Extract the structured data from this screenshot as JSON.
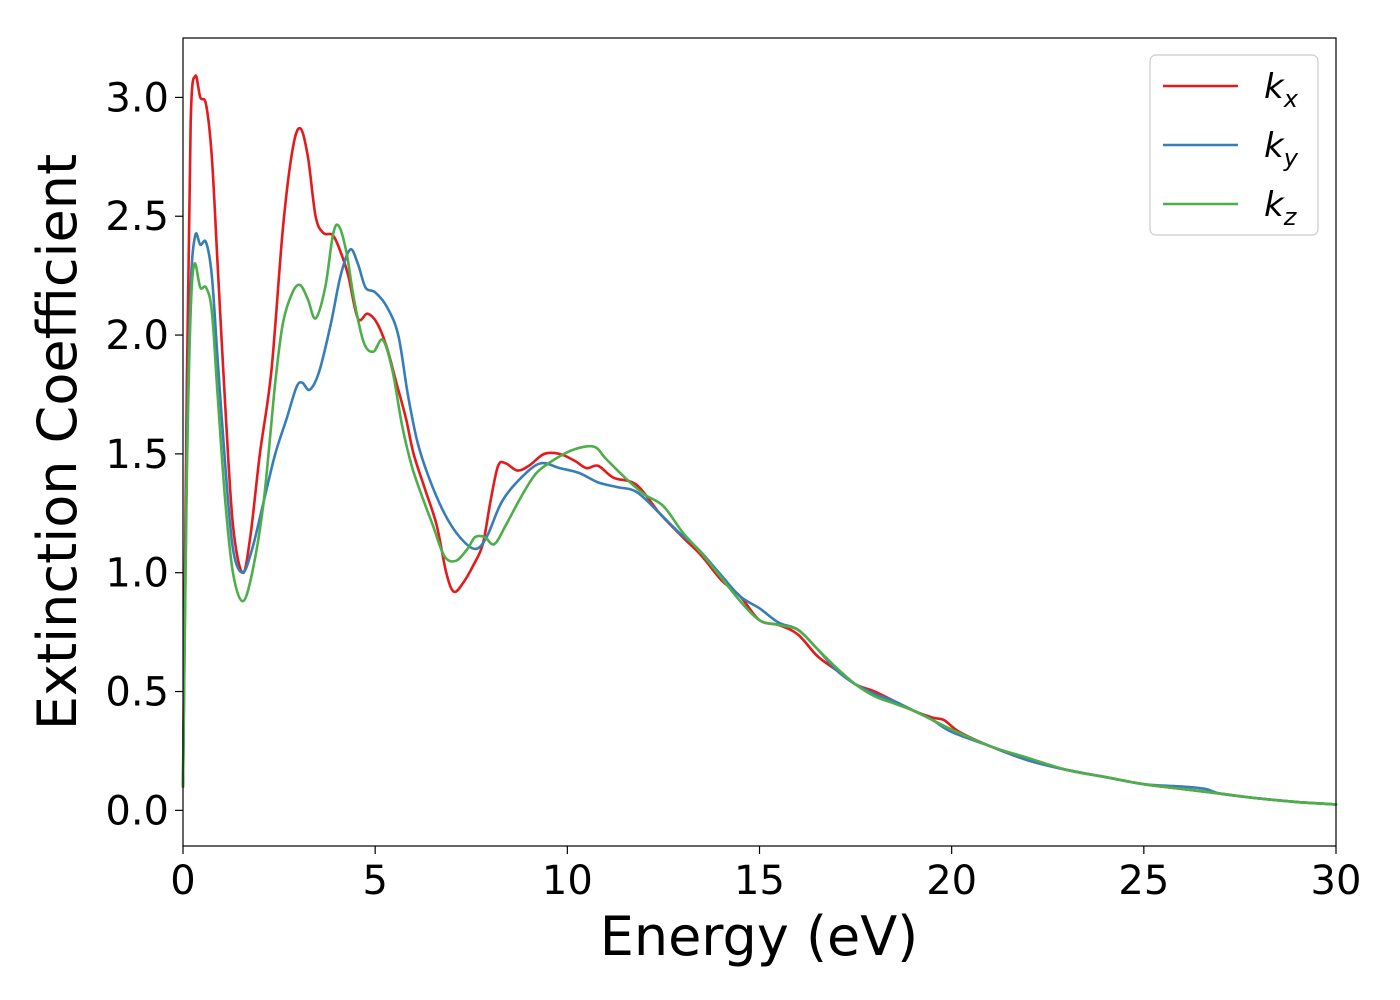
{
  "chart_data": {
    "type": "line",
    "title": "",
    "xlabel": "Energy (eV)",
    "ylabel": "Extinction Coefficient",
    "xlim": [
      0,
      30
    ],
    "ylim": [
      -0.15,
      3.25
    ],
    "x_ticks": [
      0,
      5,
      10,
      15,
      20,
      25,
      30
    ],
    "x_tick_labels": [
      "0",
      "5",
      "10",
      "15",
      "20",
      "25",
      "30"
    ],
    "y_ticks": [
      0.0,
      0.5,
      1.0,
      1.5,
      2.0,
      2.5,
      3.0
    ],
    "y_tick_labels": [
      "0.0",
      "0.5",
      "1.0",
      "1.5",
      "2.0",
      "2.5",
      "3.0"
    ],
    "grid": false,
    "legend_position": "top-right",
    "series": [
      {
        "name": "k_x",
        "legend_base": "k",
        "legend_sub": "x",
        "color": "#e41a1c",
        "points": [
          [
            0,
            0.1
          ],
          [
            0.1,
            1.8
          ],
          [
            0.2,
            2.9
          ],
          [
            0.32,
            3.09
          ],
          [
            0.45,
            3.0
          ],
          [
            0.6,
            2.97
          ],
          [
            0.75,
            2.75
          ],
          [
            0.9,
            2.3
          ],
          [
            1.1,
            1.7
          ],
          [
            1.3,
            1.2
          ],
          [
            1.55,
            1.0
          ],
          [
            1.75,
            1.15
          ],
          [
            2.0,
            1.5
          ],
          [
            2.3,
            1.85
          ],
          [
            2.6,
            2.45
          ],
          [
            2.85,
            2.78
          ],
          [
            3.05,
            2.87
          ],
          [
            3.25,
            2.75
          ],
          [
            3.45,
            2.5
          ],
          [
            3.65,
            2.43
          ],
          [
            3.9,
            2.42
          ],
          [
            4.1,
            2.35
          ],
          [
            4.3,
            2.25
          ],
          [
            4.55,
            2.07
          ],
          [
            4.8,
            2.09
          ],
          [
            5.05,
            2.05
          ],
          [
            5.3,
            1.95
          ],
          [
            5.55,
            1.8
          ],
          [
            5.8,
            1.65
          ],
          [
            6.0,
            1.5
          ],
          [
            6.3,
            1.35
          ],
          [
            6.6,
            1.2
          ],
          [
            6.85,
            1.0
          ],
          [
            7.05,
            0.92
          ],
          [
            7.3,
            0.96
          ],
          [
            7.55,
            1.03
          ],
          [
            7.8,
            1.12
          ],
          [
            8.0,
            1.3
          ],
          [
            8.2,
            1.45
          ],
          [
            8.4,
            1.46
          ],
          [
            8.7,
            1.43
          ],
          [
            9.0,
            1.45
          ],
          [
            9.4,
            1.5
          ],
          [
            9.8,
            1.5
          ],
          [
            10.2,
            1.47
          ],
          [
            10.5,
            1.44
          ],
          [
            10.8,
            1.45
          ],
          [
            11.2,
            1.4
          ],
          [
            11.8,
            1.37
          ],
          [
            12.4,
            1.25
          ],
          [
            13.0,
            1.15
          ],
          [
            13.5,
            1.07
          ],
          [
            14.0,
            0.97
          ],
          [
            14.5,
            0.9
          ],
          [
            15.0,
            0.8
          ],
          [
            15.5,
            0.78
          ],
          [
            16.0,
            0.74
          ],
          [
            16.5,
            0.65
          ],
          [
            17.0,
            0.59
          ],
          [
            17.5,
            0.53
          ],
          [
            18.0,
            0.5
          ],
          [
            18.5,
            0.46
          ],
          [
            19.0,
            0.42
          ],
          [
            19.5,
            0.39
          ],
          [
            19.8,
            0.38
          ],
          [
            20.2,
            0.33
          ],
          [
            21.0,
            0.27
          ],
          [
            22.0,
            0.21
          ],
          [
            23.0,
            0.17
          ],
          [
            24.0,
            0.14
          ],
          [
            25.0,
            0.11
          ],
          [
            26.0,
            0.09
          ],
          [
            27.0,
            0.07
          ],
          [
            28.0,
            0.05
          ],
          [
            29.0,
            0.035
          ],
          [
            30.0,
            0.025
          ]
        ]
      },
      {
        "name": "k_y",
        "legend_base": "k",
        "legend_sub": "y",
        "color": "#377eb8",
        "points": [
          [
            0,
            0.1
          ],
          [
            0.1,
            1.5
          ],
          [
            0.2,
            2.2
          ],
          [
            0.32,
            2.42
          ],
          [
            0.45,
            2.38
          ],
          [
            0.6,
            2.39
          ],
          [
            0.75,
            2.25
          ],
          [
            0.9,
            1.9
          ],
          [
            1.1,
            1.45
          ],
          [
            1.3,
            1.1
          ],
          [
            1.55,
            1.0
          ],
          [
            1.8,
            1.1
          ],
          [
            2.1,
            1.3
          ],
          [
            2.4,
            1.5
          ],
          [
            2.7,
            1.65
          ],
          [
            2.95,
            1.78
          ],
          [
            3.1,
            1.8
          ],
          [
            3.3,
            1.77
          ],
          [
            3.55,
            1.85
          ],
          [
            3.85,
            2.05
          ],
          [
            4.1,
            2.25
          ],
          [
            4.35,
            2.36
          ],
          [
            4.55,
            2.3
          ],
          [
            4.75,
            2.2
          ],
          [
            5.0,
            2.18
          ],
          [
            5.3,
            2.12
          ],
          [
            5.6,
            2.0
          ],
          [
            5.85,
            1.75
          ],
          [
            6.1,
            1.55
          ],
          [
            6.4,
            1.4
          ],
          [
            6.8,
            1.25
          ],
          [
            7.2,
            1.15
          ],
          [
            7.6,
            1.1
          ],
          [
            7.9,
            1.15
          ],
          [
            8.3,
            1.3
          ],
          [
            8.8,
            1.4
          ],
          [
            9.3,
            1.46
          ],
          [
            9.8,
            1.44
          ],
          [
            10.3,
            1.42
          ],
          [
            10.8,
            1.38
          ],
          [
            11.3,
            1.36
          ],
          [
            11.8,
            1.34
          ],
          [
            12.4,
            1.25
          ],
          [
            12.9,
            1.17
          ],
          [
            13.4,
            1.1
          ],
          [
            14.0,
            0.99
          ],
          [
            14.5,
            0.9
          ],
          [
            15.0,
            0.85
          ],
          [
            15.5,
            0.79
          ],
          [
            16.0,
            0.76
          ],
          [
            16.5,
            0.68
          ],
          [
            17.0,
            0.59
          ],
          [
            17.5,
            0.53
          ],
          [
            18.0,
            0.49
          ],
          [
            18.5,
            0.46
          ],
          [
            19.0,
            0.42
          ],
          [
            19.5,
            0.38
          ],
          [
            20.0,
            0.33
          ],
          [
            21.0,
            0.27
          ],
          [
            22.0,
            0.21
          ],
          [
            23.0,
            0.17
          ],
          [
            24.0,
            0.14
          ],
          [
            25.0,
            0.11
          ],
          [
            26.0,
            0.1
          ],
          [
            26.6,
            0.09
          ],
          [
            27.0,
            0.07
          ],
          [
            28.0,
            0.05
          ],
          [
            29.0,
            0.035
          ],
          [
            30.0,
            0.025
          ]
        ]
      },
      {
        "name": "k_z",
        "legend_base": "k",
        "legend_sub": "z",
        "color": "#4daf4a",
        "points": [
          [
            0,
            0.1
          ],
          [
            0.1,
            1.4
          ],
          [
            0.2,
            2.1
          ],
          [
            0.3,
            2.3
          ],
          [
            0.45,
            2.2
          ],
          [
            0.6,
            2.2
          ],
          [
            0.75,
            2.1
          ],
          [
            0.9,
            1.75
          ],
          [
            1.1,
            1.3
          ],
          [
            1.3,
            1.0
          ],
          [
            1.55,
            0.88
          ],
          [
            1.8,
            1.0
          ],
          [
            2.1,
            1.3
          ],
          [
            2.4,
            1.8
          ],
          [
            2.6,
            2.05
          ],
          [
            2.85,
            2.18
          ],
          [
            3.05,
            2.21
          ],
          [
            3.25,
            2.15
          ],
          [
            3.45,
            2.07
          ],
          [
            3.7,
            2.2
          ],
          [
            3.9,
            2.42
          ],
          [
            4.05,
            2.46
          ],
          [
            4.25,
            2.35
          ],
          [
            4.45,
            2.15
          ],
          [
            4.7,
            1.97
          ],
          [
            4.95,
            1.93
          ],
          [
            5.2,
            1.98
          ],
          [
            5.45,
            1.85
          ],
          [
            5.7,
            1.62
          ],
          [
            5.95,
            1.45
          ],
          [
            6.2,
            1.33
          ],
          [
            6.5,
            1.2
          ],
          [
            6.8,
            1.07
          ],
          [
            7.1,
            1.05
          ],
          [
            7.4,
            1.1
          ],
          [
            7.6,
            1.15
          ],
          [
            7.85,
            1.15
          ],
          [
            8.1,
            1.12
          ],
          [
            8.4,
            1.2
          ],
          [
            8.8,
            1.32
          ],
          [
            9.2,
            1.42
          ],
          [
            9.7,
            1.48
          ],
          [
            10.2,
            1.52
          ],
          [
            10.7,
            1.53
          ],
          [
            11.0,
            1.48
          ],
          [
            11.5,
            1.4
          ],
          [
            12.0,
            1.33
          ],
          [
            12.5,
            1.28
          ],
          [
            13.0,
            1.17
          ],
          [
            13.5,
            1.08
          ],
          [
            14.0,
            0.98
          ],
          [
            14.5,
            0.88
          ],
          [
            15.0,
            0.8
          ],
          [
            15.5,
            0.78
          ],
          [
            16.0,
            0.76
          ],
          [
            16.5,
            0.68
          ],
          [
            17.0,
            0.6
          ],
          [
            17.5,
            0.53
          ],
          [
            18.0,
            0.48
          ],
          [
            18.5,
            0.45
          ],
          [
            19.0,
            0.42
          ],
          [
            19.5,
            0.38
          ],
          [
            20.0,
            0.34
          ],
          [
            21.0,
            0.27
          ],
          [
            22.0,
            0.22
          ],
          [
            23.0,
            0.17
          ],
          [
            24.0,
            0.14
          ],
          [
            25.0,
            0.11
          ],
          [
            26.0,
            0.09
          ],
          [
            27.0,
            0.07
          ],
          [
            28.0,
            0.05
          ],
          [
            29.0,
            0.035
          ],
          [
            30.0,
            0.025
          ]
        ]
      }
    ]
  }
}
